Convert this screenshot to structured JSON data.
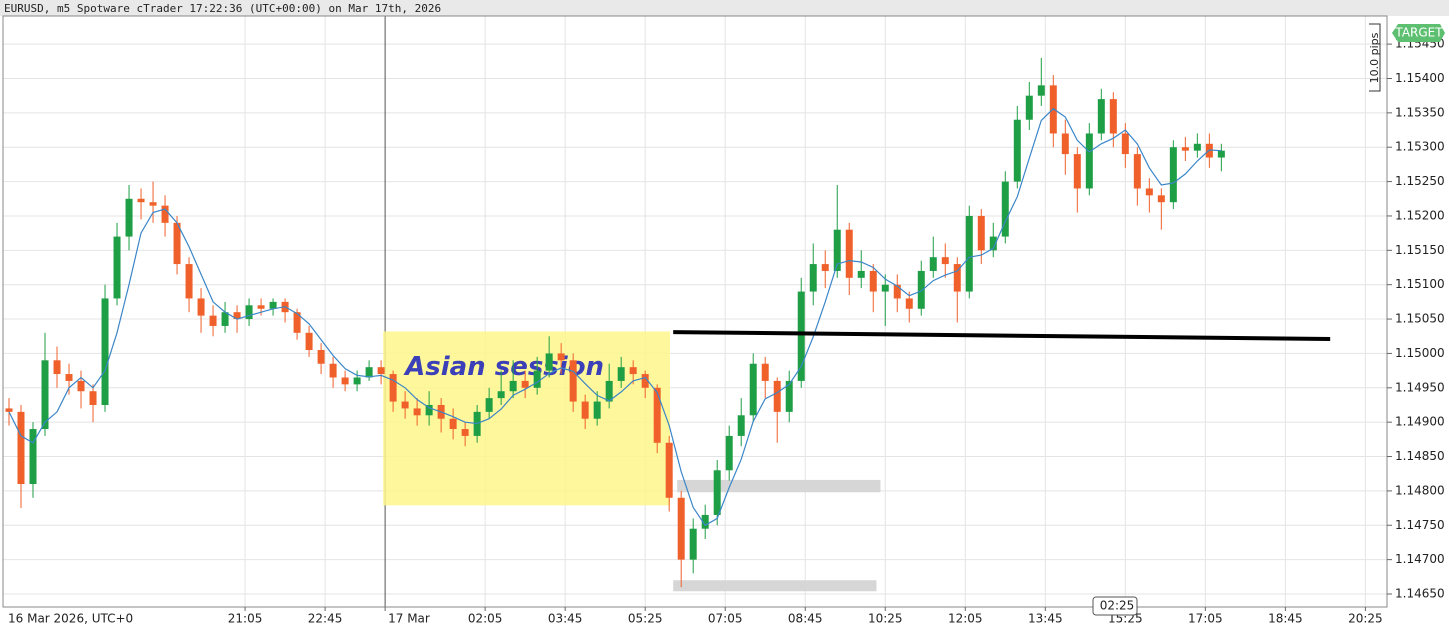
{
  "chart_data": {
    "type": "candlestick",
    "title": "EURUSD, m5 Spotware cTrader 17:22:36 (UTC+00:00) on Mar 17th, 2026",
    "date_label": "16 Mar 2026, UTC+0",
    "target_label": "TARGET",
    "ruler_label": "10.0 pips",
    "countdown_label": "02:25",
    "up_color": "#1e9e45",
    "down_color": "#f0602a",
    "xlim": [
      965,
      2692
    ],
    "ylim": [
      1.14634,
      1.15488
    ],
    "grid": true,
    "xticks": [
      {
        "value": 1265,
        "label": "21:05"
      },
      {
        "value": 1365,
        "label": "22:45"
      },
      {
        "value": 1440,
        "label": "17 Mar"
      },
      {
        "value": 1565,
        "label": "02:05"
      },
      {
        "value": 1665,
        "label": "03:45"
      },
      {
        "value": 1765,
        "label": "05:25"
      },
      {
        "value": 1865,
        "label": "07:05"
      },
      {
        "value": 1965,
        "label": "08:45"
      },
      {
        "value": 2065,
        "label": "10:25"
      },
      {
        "value": 2165,
        "label": "12:05"
      },
      {
        "value": 2265,
        "label": "13:45"
      },
      {
        "value": 2365,
        "label": "15:25"
      },
      {
        "value": 2465,
        "label": "17:05"
      },
      {
        "value": 2565,
        "label": "18:45"
      },
      {
        "value": 2665,
        "label": "20:25"
      }
    ],
    "yticks": [
      {
        "value": 1.1465,
        "label": "1.14650"
      },
      {
        "value": 1.147,
        "label": "1.14700"
      },
      {
        "value": 1.1475,
        "label": "1.14750"
      },
      {
        "value": 1.148,
        "label": "1.14800"
      },
      {
        "value": 1.1485,
        "label": "1.14850"
      },
      {
        "value": 1.149,
        "label": "1.14900"
      },
      {
        "value": 1.1495,
        "label": "1.14950"
      },
      {
        "value": 1.15,
        "label": "1.15000"
      },
      {
        "value": 1.1505,
        "label": "1.15050"
      },
      {
        "value": 1.151,
        "label": "1.15100"
      },
      {
        "value": 1.1515,
        "label": "1.15150"
      },
      {
        "value": 1.152,
        "label": "1.15200"
      },
      {
        "value": 1.1525,
        "label": "1.15250"
      },
      {
        "value": 1.153,
        "label": "1.15300"
      },
      {
        "value": 1.1535,
        "label": "1.15350"
      },
      {
        "value": 1.154,
        "label": "1.15400"
      },
      {
        "value": 1.1545,
        "label": "1.15450"
      }
    ],
    "x": [
      970,
      985,
      1000,
      1015,
      1030,
      1045,
      1060,
      1075,
      1090,
      1105,
      1120,
      1135,
      1150,
      1165,
      1180,
      1195,
      1210,
      1225,
      1240,
      1255,
      1270,
      1285,
      1300,
      1315,
      1330,
      1345,
      1360,
      1375,
      1390,
      1405,
      1420,
      1435,
      1450,
      1465,
      1480,
      1495,
      1510,
      1525,
      1540,
      1555,
      1570,
      1585,
      1600,
      1615,
      1630,
      1645,
      1660,
      1675,
      1690,
      1705,
      1720,
      1735,
      1750,
      1765,
      1780,
      1795,
      1810,
      1825,
      1840,
      1855,
      1870,
      1885,
      1900,
      1915,
      1930,
      1945,
      1960,
      1975,
      1990,
      2005,
      2020,
      2035,
      2050,
      2065,
      2080,
      2095,
      2110,
      2125,
      2140,
      2155,
      2170,
      2185,
      2200,
      2215,
      2230,
      2245,
      2260,
      2275,
      2290,
      2305,
      2320,
      2335,
      2350,
      2365,
      2380,
      2395,
      2410,
      2425,
      2440,
      2455,
      2470,
      2485
    ],
    "open": [
      1.1492,
      1.14915,
      1.1481,
      1.1489,
      1.1499,
      1.1497,
      1.1496,
      1.14945,
      1.14925,
      1.1508,
      1.1517,
      1.15225,
      1.1522,
      1.15215,
      1.1519,
      1.1513,
      1.1508,
      1.15055,
      1.1504,
      1.1506,
      1.1505,
      1.1507,
      1.15065,
      1.15075,
      1.1506,
      1.1503,
      1.15005,
      1.14985,
      1.14965,
      1.14955,
      1.14965,
      1.1498,
      1.1497,
      1.1493,
      1.1492,
      1.1491,
      1.14925,
      1.14905,
      1.1489,
      1.1488,
      1.14915,
      1.14935,
      1.14945,
      1.1496,
      1.1495,
      1.14975,
      1.15,
      1.1499,
      1.1493,
      1.14905,
      1.1493,
      1.1496,
      1.1498,
      1.1497,
      1.1495,
      1.1487,
      1.1479,
      1.147,
      1.14745,
      1.14765,
      1.1483,
      1.1488,
      1.1491,
      1.14985,
      1.1496,
      1.14915,
      1.1496,
      1.1509,
      1.1513,
      1.1512,
      1.1518,
      1.1511,
      1.1512,
      1.1509,
      1.151,
      1.1508,
      1.15065,
      1.1512,
      1.1514,
      1.1513,
      1.1509,
      1.152,
      1.1515,
      1.1517,
      1.1525,
      1.1534,
      1.15375,
      1.1539,
      1.1532,
      1.1529,
      1.1524,
      1.1532,
      1.1537,
      1.1532,
      1.1529,
      1.1524,
      1.1523,
      1.1522,
      1.153,
      1.15295,
      1.15305,
      1.15285
    ],
    "high": [
      1.14935,
      1.14925,
      1.149,
      1.1503,
      1.1501,
      1.14985,
      1.14975,
      1.14955,
      1.151,
      1.1519,
      1.15245,
      1.1524,
      1.1525,
      1.1523,
      1.152,
      1.1514,
      1.15095,
      1.1507,
      1.15075,
      1.1507,
      1.1508,
      1.1508,
      1.1508,
      1.1508,
      1.15065,
      1.1504,
      1.15015,
      1.14995,
      1.14975,
      1.14975,
      1.1499,
      1.1499,
      1.14975,
      1.14945,
      1.14935,
      1.14945,
      1.14935,
      1.1492,
      1.149,
      1.14925,
      1.1495,
      1.14975,
      1.1499,
      1.14975,
      1.14995,
      1.15025,
      1.15015,
      1.15,
      1.1494,
      1.14945,
      1.14985,
      1.14995,
      1.1499,
      1.14975,
      1.14955,
      1.1488,
      1.148,
      1.1476,
      1.1478,
      1.14845,
      1.14895,
      1.14935,
      1.15,
      1.14995,
      1.14965,
      1.14975,
      1.1511,
      1.1516,
      1.1515,
      1.15245,
      1.1519,
      1.1515,
      1.1513,
      1.15115,
      1.15115,
      1.1509,
      1.15135,
      1.1517,
      1.1516,
      1.1514,
      1.15215,
      1.1521,
      1.1519,
      1.15265,
      1.1536,
      1.15395,
      1.1543,
      1.15405,
      1.1534,
      1.153,
      1.15335,
      1.15385,
      1.1538,
      1.15335,
      1.153,
      1.15255,
      1.1524,
      1.1531,
      1.15315,
      1.1532,
      1.1532,
      1.15305
    ],
    "low": [
      1.14895,
      1.14775,
      1.1479,
      1.1488,
      1.1495,
      1.1494,
      1.1492,
      1.149,
      1.14915,
      1.1507,
      1.1515,
      1.15195,
      1.1519,
      1.1517,
      1.15115,
      1.1506,
      1.1503,
      1.15025,
      1.1503,
      1.1503,
      1.1504,
      1.15055,
      1.15055,
      1.15045,
      1.1502,
      1.14995,
      1.1497,
      1.1495,
      1.14945,
      1.14945,
      1.1496,
      1.14955,
      1.14915,
      1.14905,
      1.14895,
      1.14895,
      1.14885,
      1.14875,
      1.14865,
      1.1487,
      1.14905,
      1.14925,
      1.14935,
      1.14935,
      1.1494,
      1.14965,
      1.1497,
      1.14915,
      1.1489,
      1.14895,
      1.1492,
      1.1495,
      1.14955,
      1.14935,
      1.14855,
      1.1477,
      1.1466,
      1.1468,
      1.1473,
      1.1475,
      1.14815,
      1.14865,
      1.149,
      1.14935,
      1.1487,
      1.149,
      1.1495,
      1.1507,
      1.15095,
      1.1511,
      1.15085,
      1.15095,
      1.1506,
      1.1504,
      1.1506,
      1.15045,
      1.15055,
      1.1511,
      1.1511,
      1.15045,
      1.1508,
      1.1513,
      1.1514,
      1.1516,
      1.1524,
      1.15325,
      1.1536,
      1.153,
      1.1526,
      1.15205,
      1.1523,
      1.1531,
      1.153,
      1.1527,
      1.15215,
      1.15205,
      1.1518,
      1.1521,
      1.1528,
      1.15285,
      1.1527,
      1.15265
    ],
    "close": [
      1.14915,
      1.1481,
      1.1489,
      1.1499,
      1.1497,
      1.1496,
      1.14945,
      1.14925,
      1.1508,
      1.1517,
      1.15225,
      1.1522,
      1.15215,
      1.1519,
      1.1513,
      1.1508,
      1.15055,
      1.1504,
      1.1506,
      1.1505,
      1.1507,
      1.15065,
      1.15075,
      1.1506,
      1.1503,
      1.15005,
      1.14985,
      1.14965,
      1.14955,
      1.14965,
      1.1498,
      1.1497,
      1.1493,
      1.1492,
      1.1491,
      1.14925,
      1.14905,
      1.1489,
      1.1488,
      1.14915,
      1.14935,
      1.14945,
      1.1496,
      1.1495,
      1.14975,
      1.15,
      1.1499,
      1.1493,
      1.14905,
      1.1493,
      1.1496,
      1.1498,
      1.1497,
      1.1495,
      1.1487,
      1.1479,
      1.147,
      1.14745,
      1.14765,
      1.1483,
      1.1488,
      1.1491,
      1.14985,
      1.1496,
      1.14915,
      1.1496,
      1.1509,
      1.1513,
      1.1512,
      1.1518,
      1.1511,
      1.1512,
      1.1509,
      1.151,
      1.1508,
      1.15065,
      1.1512,
      1.1514,
      1.1513,
      1.1509,
      1.152,
      1.1515,
      1.1517,
      1.1525,
      1.1534,
      1.15375,
      1.1539,
      1.1532,
      1.1529,
      1.1524,
      1.1532,
      1.1537,
      1.1532,
      1.1529,
      1.1524,
      1.1523,
      1.1522,
      1.153,
      1.15295,
      1.15305,
      1.15285,
      1.15295
    ],
    "ma": {
      "color": "#3b86c8",
      "values": [
        1.14915,
        1.1488,
        1.1487,
        1.149,
        1.14915,
        1.1495,
        1.14965,
        1.1495,
        1.14975,
        1.1503,
        1.151,
        1.15175,
        1.15205,
        1.1521,
        1.1519,
        1.15155,
        1.15115,
        1.15075,
        1.1506,
        1.1505,
        1.15055,
        1.1506,
        1.15065,
        1.15068,
        1.15058,
        1.15043,
        1.1502,
        1.14997,
        1.14978,
        1.14968,
        1.14966,
        1.14968,
        1.14961,
        1.1495,
        1.14933,
        1.14921,
        1.14915,
        1.14908,
        1.149,
        1.14898,
        1.14905,
        1.14919,
        1.14939,
        1.14948,
        1.14958,
        1.14971,
        1.14979,
        1.14974,
        1.14956,
        1.14939,
        1.14931,
        1.14944,
        1.1496,
        1.14965,
        1.14943,
        1.14895,
        1.14828,
        1.14776,
        1.1475,
        1.1476,
        1.14805,
        1.14846,
        1.14901,
        1.14934,
        1.14943,
        1.14955,
        1.14981,
        1.15024,
        1.15075,
        1.1513,
        1.15135,
        1.15133,
        1.15125,
        1.15108,
        1.15098,
        1.15084,
        1.15091,
        1.15106,
        1.15114,
        1.1512,
        1.1514,
        1.15143,
        1.15153,
        1.15192,
        1.15228,
        1.15284,
        1.15339,
        1.15356,
        1.15344,
        1.1531,
        1.15293,
        1.15305,
        1.15313,
        1.15325,
        1.15305,
        1.1527,
        1.15245,
        1.15248,
        1.15261,
        1.1528,
        1.15296,
        1.15295
      ]
    },
    "annotations": {
      "zone": {
        "label": "Asian session",
        "color": "#fff68a",
        "x": [
          1437.5,
          1796
        ],
        "y": [
          1.14779,
          1.15032
        ]
      },
      "level": {
        "x": [
          1800,
          2621
        ],
        "y": [
          1.15031,
          1.15021
        ]
      },
      "boxes": [
        {
          "x": [
            1805,
            2059
          ],
          "y": [
            1.14798,
            1.14816
          ]
        },
        {
          "x": [
            1800,
            2054
          ],
          "y": [
            1.14654,
            1.1467
          ]
        }
      ]
    }
  }
}
